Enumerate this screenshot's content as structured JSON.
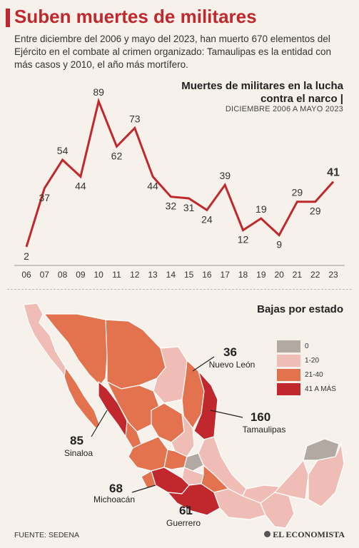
{
  "header": {
    "title": "Suben muertes de militares",
    "intro": "Entre diciembre del 2006 y mayo del 2023, han muerto 670 elementos del Ejército en el combate al crimen organizado: Tamaulipas es la entidad con más casos y 2010, el año más mortífero."
  },
  "chart_data": {
    "type": "line",
    "title": "Muertes de militares en la lucha contra el narco |",
    "subtitle": "DICIEMBRE 2006 A MAYO 2023",
    "categories": [
      "06",
      "07",
      "08",
      "09",
      "10",
      "11",
      "12",
      "13",
      "14",
      "15",
      "16",
      "17",
      "18",
      "19",
      "20",
      "21",
      "22",
      "23"
    ],
    "values": [
      2,
      37,
      54,
      44,
      89,
      62,
      73,
      44,
      32,
      31,
      24,
      39,
      12,
      19,
      9,
      29,
      29,
      41
    ],
    "color": "#c0282d"
  },
  "map": {
    "title": "Bajas por estado",
    "legend": [
      {
        "label": "0",
        "color": "#b2aaa2"
      },
      {
        "label": "1-20",
        "color": "#f0bdb6"
      },
      {
        "label": "21-40",
        "color": "#e3734f"
      },
      {
        "label": "41 A MÁS",
        "color": "#c0282d"
      }
    ],
    "states": [
      {
        "name": "Nuevo León",
        "value": "36"
      },
      {
        "name": "Tamaulipas",
        "value": "160"
      },
      {
        "name": "Sinaloa",
        "value": "85"
      },
      {
        "name": "Michoacán",
        "value": "68"
      },
      {
        "name": "Guerrero",
        "value": "61"
      }
    ]
  },
  "footer": {
    "source": "FUENTE: SEDENA",
    "logo": "EL ECONOMISTA"
  }
}
